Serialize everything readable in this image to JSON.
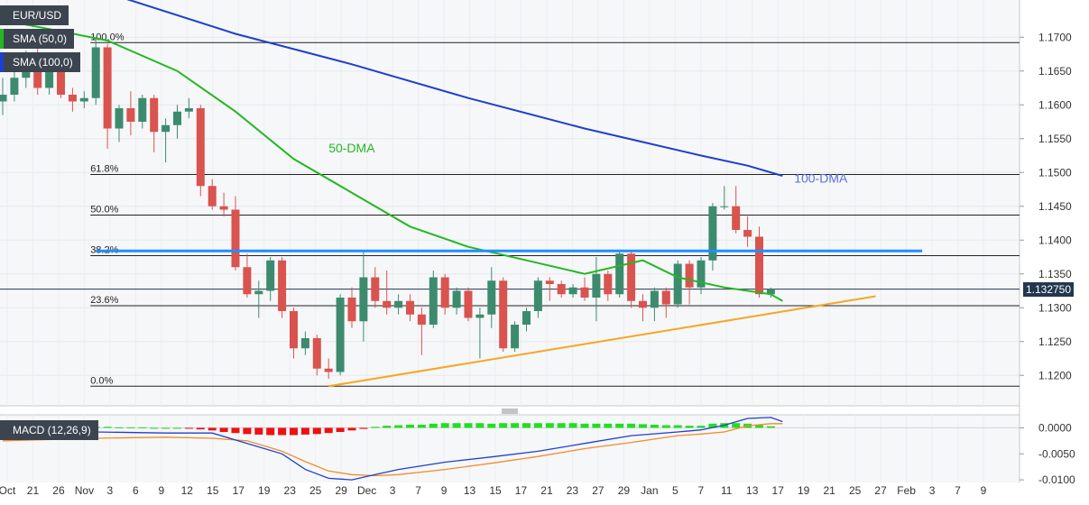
{
  "legend": {
    "symbol": "EUR/USD",
    "sma50": "SMA (50,0)",
    "sma100": "SMA (100,0)",
    "macd": "MACD (12,26,9)"
  },
  "colors": {
    "bull": "#3d8b6e",
    "bear": "#d9534f",
    "sma50": "#22b822",
    "sma100": "#1f3fcf",
    "resistance": "#1e90ff",
    "trendline": "#f5a623",
    "macd_line": "#1f3fcf",
    "signal_line": "#f28c28",
    "hist_pos": "#22dd22",
    "hist_neg": "#ee1111"
  },
  "chart_data": [
    {
      "type": "candlestick",
      "title": "EUR/USD",
      "ylim": [
        1.1155,
        1.1755
      ],
      "y_ticks": [
        "1.1200",
        "1.1250",
        "1.1300",
        "1.1350",
        "1.1400",
        "1.1450",
        "1.1500",
        "1.1550",
        "1.1600",
        "1.1650",
        "1.1700"
      ],
      "x_ticks": [
        "Oct",
        "21",
        "26",
        "Nov",
        "3",
        "6",
        "9",
        "12",
        "15",
        "17",
        "19",
        "23",
        "25",
        "29",
        "Dec",
        "3",
        "7",
        "9",
        "13",
        "15",
        "17",
        "21",
        "23",
        "27",
        "29",
        "Jan",
        "5",
        "7",
        "11",
        "13",
        "17",
        "19",
        "21",
        "25",
        "27",
        "Feb",
        "3",
        "7",
        "9"
      ],
      "last_price": "1.132750",
      "candles": [
        {
          "o": 1.1605,
          "h": 1.164,
          "l": 1.1585,
          "c": 1.1615
        },
        {
          "o": 1.1615,
          "h": 1.1665,
          "l": 1.1605,
          "c": 1.164
        },
        {
          "o": 1.164,
          "h": 1.168,
          "l": 1.1625,
          "c": 1.166
        },
        {
          "o": 1.166,
          "h": 1.169,
          "l": 1.1615,
          "c": 1.1625
        },
        {
          "o": 1.1625,
          "h": 1.1675,
          "l": 1.1615,
          "c": 1.166
        },
        {
          "o": 1.166,
          "h": 1.167,
          "l": 1.161,
          "c": 1.1615
        },
        {
          "o": 1.1615,
          "h": 1.1625,
          "l": 1.159,
          "c": 1.1605
        },
        {
          "o": 1.1605,
          "h": 1.162,
          "l": 1.1595,
          "c": 1.161
        },
        {
          "o": 1.161,
          "h": 1.17,
          "l": 1.16,
          "c": 1.1685
        },
        {
          "o": 1.1685,
          "h": 1.169,
          "l": 1.1535,
          "c": 1.1565
        },
        {
          "o": 1.1565,
          "h": 1.16,
          "l": 1.1545,
          "c": 1.1595
        },
        {
          "o": 1.1595,
          "h": 1.162,
          "l": 1.1555,
          "c": 1.1575
        },
        {
          "o": 1.1575,
          "h": 1.1615,
          "l": 1.1565,
          "c": 1.161
        },
        {
          "o": 1.161,
          "h": 1.1615,
          "l": 1.153,
          "c": 1.156
        },
        {
          "o": 1.156,
          "h": 1.158,
          "l": 1.1515,
          "c": 1.157
        },
        {
          "o": 1.157,
          "h": 1.16,
          "l": 1.155,
          "c": 1.159
        },
        {
          "o": 1.159,
          "h": 1.161,
          "l": 1.158,
          "c": 1.1595
        },
        {
          "o": 1.1595,
          "h": 1.16,
          "l": 1.1465,
          "c": 1.148
        },
        {
          "o": 1.148,
          "h": 1.149,
          "l": 1.1445,
          "c": 1.145
        },
        {
          "o": 1.145,
          "h": 1.147,
          "l": 1.1435,
          "c": 1.1445
        },
        {
          "o": 1.1445,
          "h": 1.1465,
          "l": 1.1355,
          "c": 1.136
        },
        {
          "o": 1.136,
          "h": 1.138,
          "l": 1.1315,
          "c": 1.132
        },
        {
          "o": 1.132,
          "h": 1.134,
          "l": 1.1285,
          "c": 1.1325
        },
        {
          "o": 1.1325,
          "h": 1.1375,
          "l": 1.131,
          "c": 1.137
        },
        {
          "o": 1.137,
          "h": 1.1375,
          "l": 1.1285,
          "c": 1.1295
        },
        {
          "o": 1.1295,
          "h": 1.13,
          "l": 1.1225,
          "c": 1.124
        },
        {
          "o": 1.124,
          "h": 1.1265,
          "l": 1.123,
          "c": 1.1255
        },
        {
          "o": 1.1255,
          "h": 1.126,
          "l": 1.12,
          "c": 1.121
        },
        {
          "o": 1.121,
          "h": 1.1225,
          "l": 1.1195,
          "c": 1.1205
        },
        {
          "o": 1.1205,
          "h": 1.132,
          "l": 1.12,
          "c": 1.1315
        },
        {
          "o": 1.1315,
          "h": 1.133,
          "l": 1.127,
          "c": 1.128
        },
        {
          "o": 1.128,
          "h": 1.1385,
          "l": 1.125,
          "c": 1.1345
        },
        {
          "o": 1.1345,
          "h": 1.136,
          "l": 1.13,
          "c": 1.131
        },
        {
          "o": 1.131,
          "h": 1.1355,
          "l": 1.129,
          "c": 1.13
        },
        {
          "o": 1.13,
          "h": 1.132,
          "l": 1.129,
          "c": 1.131
        },
        {
          "o": 1.131,
          "h": 1.132,
          "l": 1.128,
          "c": 1.129
        },
        {
          "o": 1.129,
          "h": 1.13,
          "l": 1.123,
          "c": 1.1275
        },
        {
          "o": 1.1275,
          "h": 1.1355,
          "l": 1.127,
          "c": 1.1345
        },
        {
          "o": 1.1345,
          "h": 1.135,
          "l": 1.129,
          "c": 1.13
        },
        {
          "o": 1.13,
          "h": 1.133,
          "l": 1.129,
          "c": 1.1325
        },
        {
          "o": 1.1325,
          "h": 1.133,
          "l": 1.128,
          "c": 1.1285
        },
        {
          "o": 1.1285,
          "h": 1.13,
          "l": 1.1225,
          "c": 1.129
        },
        {
          "o": 1.129,
          "h": 1.136,
          "l": 1.127,
          "c": 1.134
        },
        {
          "o": 1.134,
          "h": 1.1345,
          "l": 1.1235,
          "c": 1.124
        },
        {
          "o": 1.124,
          "h": 1.128,
          "l": 1.1235,
          "c": 1.1275
        },
        {
          "o": 1.1275,
          "h": 1.13,
          "l": 1.1265,
          "c": 1.1295
        },
        {
          "o": 1.1295,
          "h": 1.1345,
          "l": 1.1285,
          "c": 1.134
        },
        {
          "o": 1.134,
          "h": 1.1345,
          "l": 1.131,
          "c": 1.1335
        },
        {
          "o": 1.1335,
          "h": 1.134,
          "l": 1.1315,
          "c": 1.132
        },
        {
          "o": 1.132,
          "h": 1.1335,
          "l": 1.1315,
          "c": 1.133
        },
        {
          "o": 1.133,
          "h": 1.1345,
          "l": 1.131,
          "c": 1.1315
        },
        {
          "o": 1.1315,
          "h": 1.1375,
          "l": 1.128,
          "c": 1.135
        },
        {
          "o": 1.135,
          "h": 1.1355,
          "l": 1.131,
          "c": 1.132
        },
        {
          "o": 1.132,
          "h": 1.1385,
          "l": 1.1315,
          "c": 1.138
        },
        {
          "o": 1.138,
          "h": 1.1385,
          "l": 1.13,
          "c": 1.131
        },
        {
          "o": 1.131,
          "h": 1.132,
          "l": 1.128,
          "c": 1.13
        },
        {
          "o": 1.13,
          "h": 1.133,
          "l": 1.128,
          "c": 1.1325
        },
        {
          "o": 1.1325,
          "h": 1.133,
          "l": 1.1285,
          "c": 1.1305
        },
        {
          "o": 1.1305,
          "h": 1.137,
          "l": 1.13,
          "c": 1.1365
        },
        {
          "o": 1.1365,
          "h": 1.137,
          "l": 1.1305,
          "c": 1.133
        },
        {
          "o": 1.133,
          "h": 1.1375,
          "l": 1.132,
          "c": 1.137
        },
        {
          "o": 1.137,
          "h": 1.1455,
          "l": 1.1355,
          "c": 1.145
        },
        {
          "o": 1.145,
          "h": 1.148,
          "l": 1.1445,
          "c": 1.145
        },
        {
          "o": 1.145,
          "h": 1.148,
          "l": 1.141,
          "c": 1.1415
        },
        {
          "o": 1.1415,
          "h": 1.1435,
          "l": 1.139,
          "c": 1.1405
        },
        {
          "o": 1.1405,
          "h": 1.142,
          "l": 1.1315,
          "c": 1.132
        },
        {
          "o": 1.132,
          "h": 1.133,
          "l": 1.1315,
          "c": 1.13275
        }
      ],
      "sma50": [
        [
          0,
          1.1725
        ],
        [
          4,
          1.1712
        ],
        [
          9,
          1.1695
        ],
        [
          15,
          1.165
        ],
        [
          20,
          1.159
        ],
        [
          25,
          1.152
        ],
        [
          30,
          1.147
        ],
        [
          35,
          1.142
        ],
        [
          40,
          1.139
        ],
        [
          45,
          1.137
        ],
        [
          50,
          1.135
        ],
        [
          55,
          1.137
        ],
        [
          58,
          1.1345
        ],
        [
          62,
          1.133
        ],
        [
          66,
          1.132
        ],
        [
          67,
          1.131
        ]
      ],
      "sma100": [
        [
          0,
          1.179
        ],
        [
          10,
          1.176
        ],
        [
          20,
          1.1705
        ],
        [
          30,
          1.166
        ],
        [
          40,
          1.161
        ],
        [
          50,
          1.1565
        ],
        [
          55,
          1.1545
        ],
        [
          60,
          1.1525
        ],
        [
          64,
          1.151
        ],
        [
          67,
          1.1495
        ]
      ],
      "annotations": [
        {
          "label": "50-DMA",
          "x": 28,
          "y": 1.153
        },
        {
          "label": "100-DMA",
          "x": 68,
          "y": 1.1485
        }
      ],
      "fib_levels": [
        {
          "label": "100.0%",
          "value": 1.1692
        },
        {
          "label": "61.8%",
          "value": 1.1497
        },
        {
          "label": "50.0%",
          "value": 1.1437
        },
        {
          "label": "38.2%",
          "value": 1.1377
        },
        {
          "label": "23.6%",
          "value": 1.1303
        },
        {
          "label": "0.0%",
          "value": 1.1184
        }
      ],
      "fib_x_start": 8,
      "resistance": {
        "value": 1.1384,
        "x_start": 8,
        "x_end": 79
      },
      "trendline": {
        "x_start": 28,
        "y_start": 1.1184,
        "x_end": 75,
        "y_end": 1.1317
      }
    },
    {
      "type": "macd",
      "title": "MACD (12,26,9)",
      "ylim": [
        -0.0105,
        0.0025
      ],
      "y_ticks": [
        "0.0000",
        "-0.0050",
        "-0.0100"
      ],
      "histogram": [
        0.0001,
        0.0001,
        0.0001,
        0.0001,
        0.0001,
        0.0001,
        0.0001,
        0.0001,
        0.0002,
        0.0002,
        0.0001,
        0.0001,
        0.0001,
        0.0,
        0.0,
        0.0,
        -0.0001,
        -0.0003,
        -0.0005,
        -0.0008,
        -0.001,
        -0.0012,
        -0.0013,
        -0.0014,
        -0.0014,
        -0.0014,
        -0.0013,
        -0.0012,
        -0.001,
        -0.0008,
        -0.0005,
        -0.0002,
        0.0002,
        0.0004,
        0.0005,
        0.0006,
        0.0006,
        0.0008,
        0.0009,
        0.0009,
        0.0009,
        0.0009,
        0.0008,
        0.0009,
        0.0009,
        0.0009,
        0.0009,
        0.0009,
        0.0009,
        0.0009,
        0.0008,
        0.0008,
        0.0008,
        0.0008,
        0.0008,
        0.0007,
        0.0006,
        0.0005,
        0.0005,
        0.0004,
        0.0004,
        0.0008,
        0.0009,
        0.0009,
        0.0008,
        0.0005,
        0.0003
      ],
      "macd_line": [
        [
          0,
          0.0
        ],
        [
          8,
          -0.0008
        ],
        [
          14,
          -0.001
        ],
        [
          18,
          -0.001
        ],
        [
          21,
          -0.003
        ],
        [
          24,
          -0.005
        ],
        [
          26,
          -0.008
        ],
        [
          28,
          -0.0097
        ],
        [
          30,
          -0.01
        ],
        [
          32,
          -0.009
        ],
        [
          34,
          -0.008
        ],
        [
          38,
          -0.0066
        ],
        [
          42,
          -0.0056
        ],
        [
          46,
          -0.0045
        ],
        [
          50,
          -0.003
        ],
        [
          54,
          -0.0015
        ],
        [
          58,
          -0.0008
        ],
        [
          60,
          -0.0004
        ],
        [
          62,
          0.0005
        ],
        [
          64,
          0.0018
        ],
        [
          66,
          0.002
        ],
        [
          67,
          0.0012
        ]
      ],
      "signal_line": [
        [
          0,
          -0.0025
        ],
        [
          8,
          -0.002
        ],
        [
          14,
          -0.0018
        ],
        [
          18,
          -0.002
        ],
        [
          21,
          -0.0025
        ],
        [
          24,
          -0.0045
        ],
        [
          26,
          -0.0065
        ],
        [
          28,
          -0.0083
        ],
        [
          30,
          -0.009
        ],
        [
          32,
          -0.0092
        ],
        [
          34,
          -0.009
        ],
        [
          38,
          -0.008
        ],
        [
          42,
          -0.0068
        ],
        [
          46,
          -0.0055
        ],
        [
          50,
          -0.004
        ],
        [
          54,
          -0.0028
        ],
        [
          58,
          -0.0015
        ],
        [
          60,
          -0.0012
        ],
        [
          62,
          -0.0008
        ],
        [
          64,
          0.0004
        ],
        [
          66,
          0.0008
        ],
        [
          67,
          0.0008
        ]
      ]
    }
  ]
}
